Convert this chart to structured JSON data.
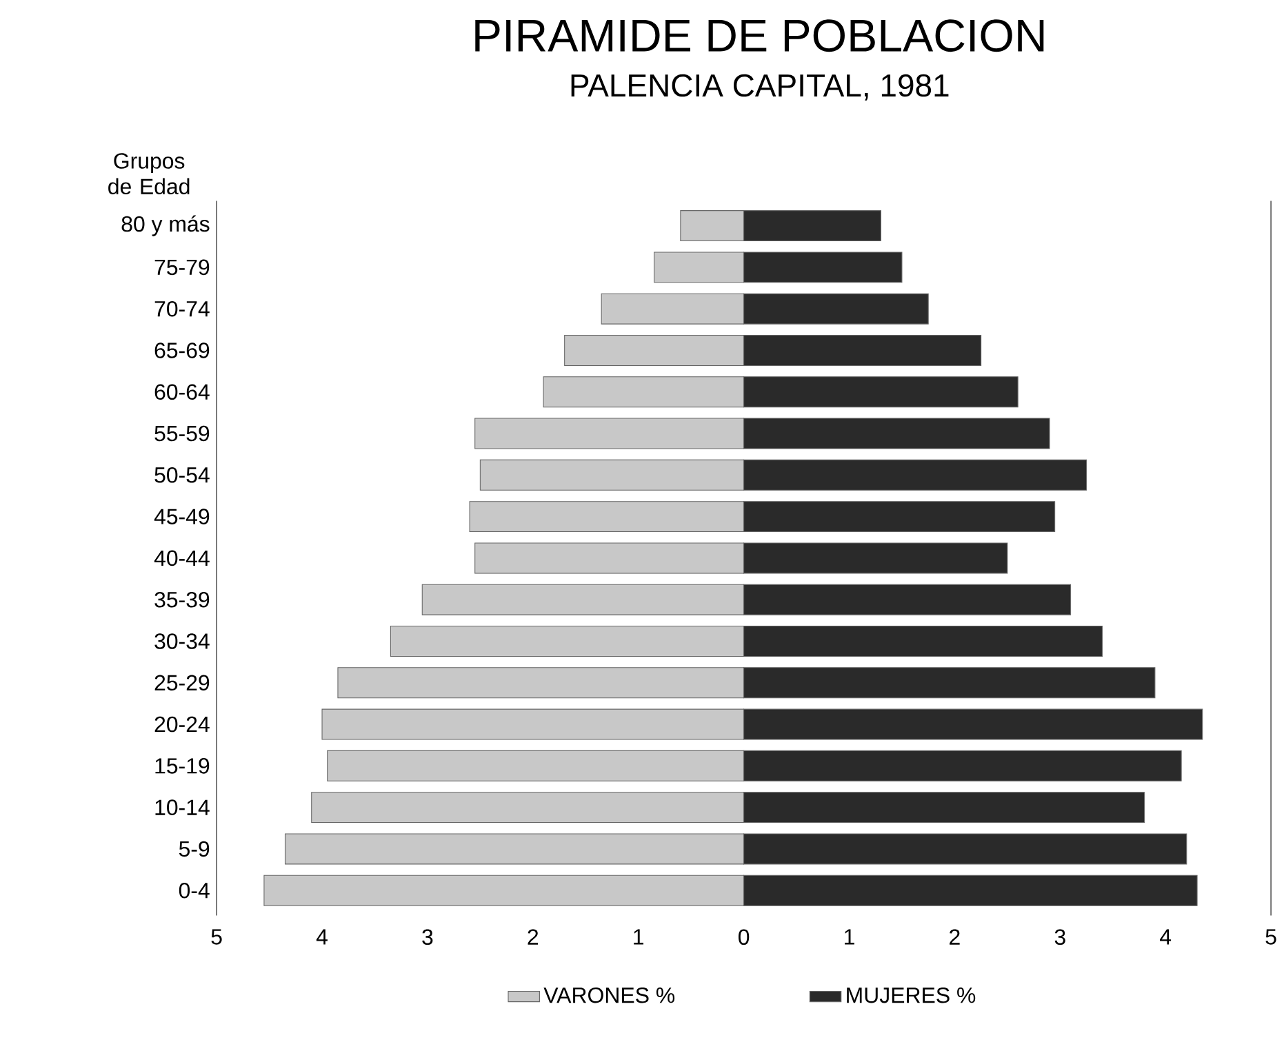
{
  "chart_data": {
    "type": "bar",
    "orientation": "horizontal",
    "title": "PIRAMIDE DE POBLACION",
    "subtitle": "PALENCIA CAPITAL, 1981",
    "ylabel": "Grupos de Edad",
    "categories": [
      "80 y más",
      "75-79",
      "70-74",
      "65-69",
      "60-64",
      "55-59",
      "50-54",
      "45-49",
      "40-44",
      "35-39",
      "30-34",
      "25-29",
      "20-24",
      "15-19",
      "10-14",
      "5-9",
      "0-4"
    ],
    "series": [
      {
        "name": "VARONES %",
        "color": "#c8c8c8",
        "values": [
          -0.6,
          -0.85,
          -1.35,
          -1.7,
          -1.9,
          -2.55,
          -2.5,
          -2.6,
          -2.55,
          -3.05,
          -3.35,
          -3.85,
          -4.0,
          -3.95,
          -4.1,
          -4.35,
          -4.55
        ]
      },
      {
        "name": "MUJERES %",
        "color": "#2a2a2a",
        "values": [
          1.3,
          1.5,
          1.75,
          2.25,
          2.6,
          2.9,
          3.25,
          2.95,
          2.5,
          3.1,
          3.4,
          3.9,
          4.35,
          4.15,
          3.8,
          4.2,
          4.3
        ]
      }
    ],
    "xlim": [
      -5,
      5
    ],
    "xticks": [
      {
        "value": -5,
        "label": "5"
      },
      {
        "value": -4,
        "label": "4"
      },
      {
        "value": -3,
        "label": "3"
      },
      {
        "value": -2,
        "label": "2"
      },
      {
        "value": -1,
        "label": "1"
      },
      0,
      1,
      2,
      3,
      4,
      5
    ],
    "legend": "bottom",
    "stacked": true
  }
}
